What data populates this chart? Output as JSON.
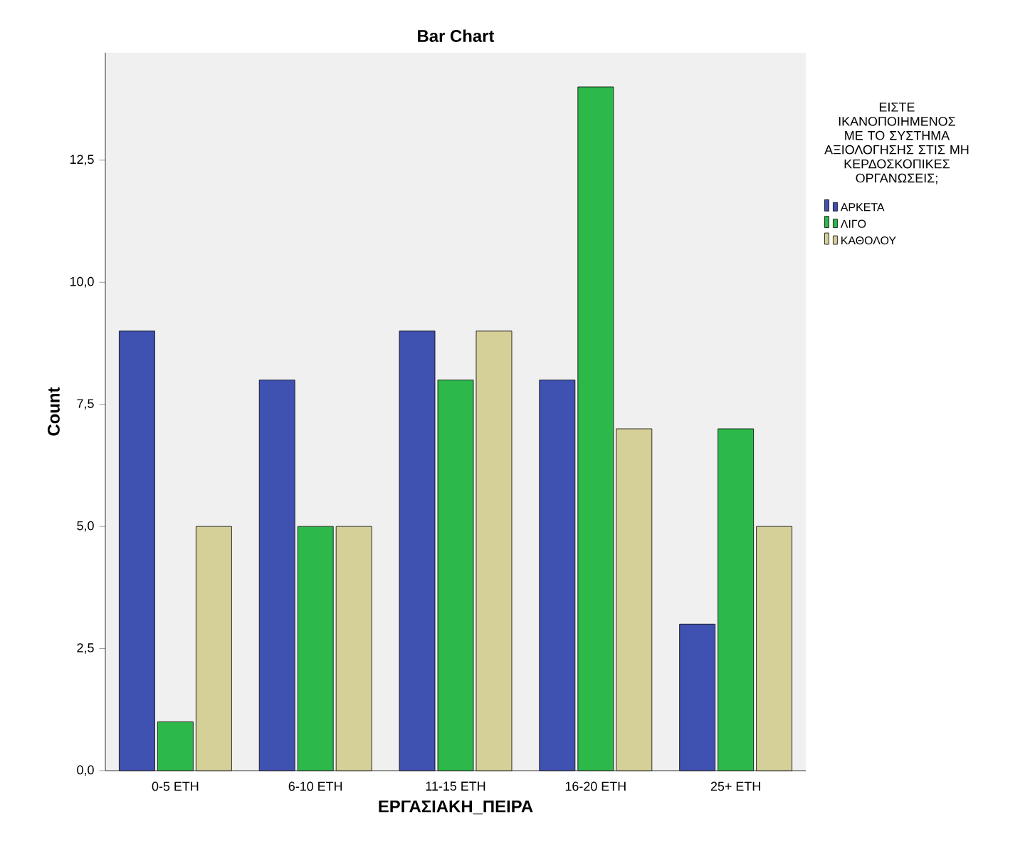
{
  "chart_data": {
    "type": "bar",
    "title": "Bar Chart",
    "xlabel": "ΕΡΓΑΣΙΑΚΗ_ΠΕΙΡΑ",
    "ylabel": "Count",
    "legend_title": "ΕΙΣΤΕ ΙΚΑΝΟΠΟΙΗΜΕΝΟΣ ΜΕ ΤΟ ΣΥΣΤΗΜΑ ΑΞΙΟΛΟΓΗΣΗΣ ΣΤΙΣ ΜΗ ΚΕΡΔΟΣΚΟΠΙΚΕΣ ΟΡΓΑΝΩΣΕΙΣ;",
    "legend": "right",
    "grid": false,
    "categories": [
      "0-5 ΕΤΗ",
      "6-10 ΕΤΗ",
      "11-15 ΕΤΗ",
      "16-20 ΕΤΗ",
      "25+ ΕΤΗ"
    ],
    "series": [
      {
        "name": "ΑΡΚΕΤΑ",
        "color": "#3f51b1",
        "values": [
          9,
          8,
          9,
          8,
          3
        ]
      },
      {
        "name": "ΛΙΓΟ",
        "color": "#2db84a",
        "values": [
          1,
          5,
          8,
          14,
          7
        ]
      },
      {
        "name": "ΚΑΘΟΛΟΥ",
        "color": "#d5cf98",
        "values": [
          5,
          5,
          9,
          7,
          5
        ]
      }
    ],
    "ylim": [
      0,
      14.7
    ],
    "yticks": [
      {
        "value": 0,
        "label": "0,0"
      },
      {
        "value": 2.5,
        "label": "2,5"
      },
      {
        "value": 5,
        "label": "5,0"
      },
      {
        "value": 7.5,
        "label": "7,5"
      },
      {
        "value": 10,
        "label": "10,0"
      },
      {
        "value": 12.5,
        "label": "12,5"
      }
    ]
  }
}
